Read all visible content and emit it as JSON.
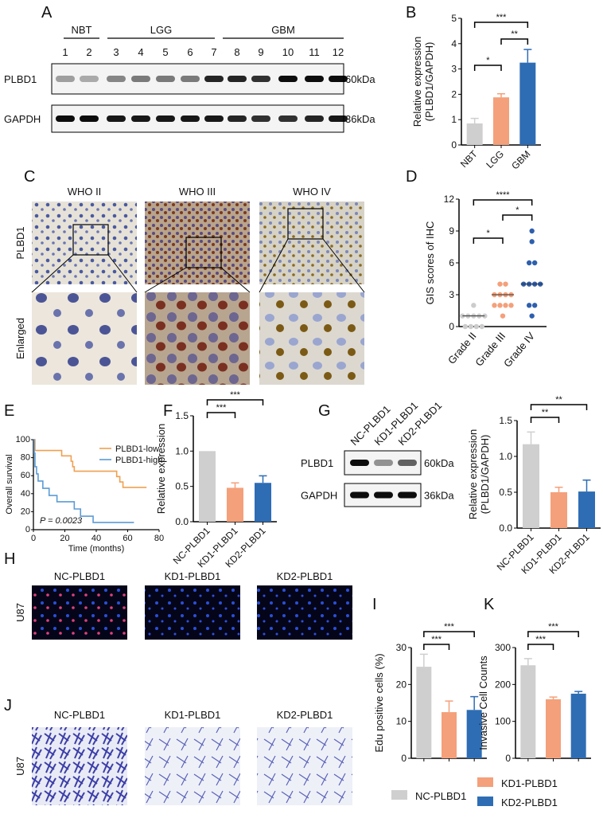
{
  "panels": {
    "A": "A",
    "B": "B",
    "C": "C",
    "D": "D",
    "E": "E",
    "F": "F",
    "G": "G",
    "H": "H",
    "I": "I",
    "J": "J",
    "K": "K"
  },
  "colors": {
    "nc": "#cfcfcf",
    "kd1": "#f4a07a",
    "kd2": "#2e6db4",
    "low": "#f0a050",
    "high": "#5b9bd5",
    "grade2": "#cccccc",
    "grade3": "#f4a07a",
    "grade4": "#2e5fae"
  },
  "blotA": {
    "groups": [
      "NBT",
      "LGG",
      "GBM"
    ],
    "lanes": [
      "1",
      "2",
      "3",
      "4",
      "5",
      "6",
      "7",
      "8",
      "9",
      "10",
      "11",
      "12"
    ],
    "rows": [
      "PLBD1",
      "GAPDH"
    ],
    "sizes": [
      "60kDa",
      "36kDa"
    ],
    "plbd1_intensity": [
      0.35,
      0.3,
      0.45,
      0.5,
      0.5,
      0.5,
      0.85,
      0.85,
      0.8,
      0.95,
      0.95,
      0.95
    ],
    "gapdh_intensity": [
      0.95,
      0.95,
      0.9,
      0.9,
      0.9,
      0.9,
      0.9,
      0.85,
      0.8,
      0.8,
      0.85,
      0.9
    ]
  },
  "ihc": {
    "columns": [
      "WHO II",
      "WHO III",
      "WHO IV"
    ],
    "rows": [
      "PLBD1",
      "Enlarged"
    ]
  },
  "blotG": {
    "lanes": [
      "NC-PLBD1",
      "KD1-PLBD1",
      "KD2-PLBD1"
    ],
    "rows": [
      "PLBD1",
      "GAPDH"
    ],
    "sizes": [
      "60kDa",
      "36kDa"
    ],
    "plbd1_intensity": [
      0.95,
      0.4,
      0.6
    ],
    "gapdh_intensity": [
      0.95,
      0.95,
      0.95
    ]
  },
  "images": {
    "columns": [
      "NC-PLBD1",
      "KD1-PLBD1",
      "KD2-PLBD1"
    ],
    "cell_line": "U87"
  },
  "legend": {
    "nc": "NC-PLBD1",
    "kd1": "KD1-PLBD1",
    "kd2": "KD2-PLBD1"
  },
  "chart_data": [
    {
      "id": "B",
      "type": "bar",
      "categories": [
        "NBT",
        "LGG",
        "GBM"
      ],
      "values": [
        0.85,
        1.88,
        3.25
      ],
      "errors": [
        0.2,
        0.14,
        0.52
      ],
      "ylabel": "Relative expression (PLBD1/GAPDH)",
      "ylabel_lines": [
        "Relative expression",
        "(PLBD1/GAPDH)"
      ],
      "ylim": [
        0,
        5
      ],
      "yticks": [
        "0",
        "1",
        "2",
        "3",
        "4",
        "5"
      ],
      "significance": [
        {
          "pair": [
            0,
            1
          ],
          "label": "*"
        },
        {
          "pair": [
            1,
            2
          ],
          "label": "**"
        },
        {
          "pair": [
            0,
            2
          ],
          "label": "***"
        }
      ]
    },
    {
      "id": "D",
      "type": "scatter",
      "categories": [
        "Grade II",
        "Grade III",
        "Grade IV"
      ],
      "ylabel": "GIS scores of IHC",
      "ylim": [
        0,
        12
      ],
      "yticks": [
        "0",
        "3",
        "6",
        "9",
        "12"
      ],
      "points": [
        [
          0,
          0,
          0,
          0,
          1,
          1,
          1,
          1,
          1,
          2
        ],
        [
          1,
          2,
          2,
          2,
          2,
          3,
          3,
          3,
          3,
          4,
          4
        ],
        [
          1,
          2,
          2,
          4,
          4,
          4,
          4,
          6,
          6,
          8,
          9
        ]
      ],
      "medians": [
        1,
        3,
        4
      ],
      "significance": [
        {
          "pair": [
            0,
            1
          ],
          "label": "*"
        },
        {
          "pair": [
            1,
            2
          ],
          "label": "*"
        },
        {
          "pair": [
            0,
            2
          ],
          "label": "****"
        }
      ]
    },
    {
      "id": "E",
      "type": "line",
      "xlabel": "Time (months)",
      "ylabel": "Overall survival",
      "xlim": [
        0,
        80
      ],
      "ylim": [
        0,
        100
      ],
      "xticks": [
        "0",
        "20",
        "40",
        "60",
        "80"
      ],
      "yticks": [
        "0",
        "20",
        "40",
        "60",
        "80",
        "100"
      ],
      "annotation": "P = 0.0023",
      "series": [
        {
          "name": "PLBD1-low",
          "points": [
            [
              0,
              100
            ],
            [
              1,
              88
            ],
            [
              18,
              82
            ],
            [
              24,
              76
            ],
            [
              25,
              70
            ],
            [
              26,
              65
            ],
            [
              53,
              59
            ],
            [
              55,
              53
            ],
            [
              57,
              47
            ],
            [
              72,
              47
            ]
          ]
        },
        {
          "name": "PLBD1-high",
          "points": [
            [
              0,
              100
            ],
            [
              0.5,
              85
            ],
            [
              1,
              70
            ],
            [
              2,
              62
            ],
            [
              3,
              54
            ],
            [
              6,
              46
            ],
            [
              10,
              38
            ],
            [
              15,
              31
            ],
            [
              26,
              23
            ],
            [
              30,
              15
            ],
            [
              38,
              8
            ],
            [
              64,
              8
            ]
          ]
        }
      ]
    },
    {
      "id": "F",
      "type": "bar",
      "categories": [
        "NC-PLBD1",
        "KD1-PLBD1",
        "KD2-PLBD1"
      ],
      "values": [
        1.0,
        0.48,
        0.55
      ],
      "errors": [
        0,
        0.07,
        0.1
      ],
      "ylabel": "Relative expression",
      "ylabel_lines": [
        "Relative expression"
      ],
      "ylim": [
        0,
        1.5
      ],
      "yticks": [
        "0.0",
        "0.5",
        "1.0",
        "1.5"
      ],
      "significance": [
        {
          "pair": [
            0,
            1
          ],
          "label": "***"
        },
        {
          "pair": [
            0,
            2
          ],
          "label": "***"
        }
      ]
    },
    {
      "id": "G",
      "type": "bar",
      "categories": [
        "NC-PLBD1",
        "KD1-PLBD1",
        "KD2-PLBD1"
      ],
      "values": [
        1.17,
        0.5,
        0.51
      ],
      "errors": [
        0.17,
        0.07,
        0.16
      ],
      "ylabel": "Relative expression (PLBD1/GAPDH)",
      "ylabel_lines": [
        "Relative expression",
        "(PLBD1/GAPDH)"
      ],
      "ylim": [
        0,
        1.5
      ],
      "yticks": [
        "0.0",
        "0.5",
        "1.0",
        "1.5"
      ],
      "significance": [
        {
          "pair": [
            0,
            1
          ],
          "label": "**"
        },
        {
          "pair": [
            0,
            2
          ],
          "label": "**"
        }
      ]
    },
    {
      "id": "I",
      "type": "bar",
      "categories": [
        "NC-PLBD1",
        "KD1-PLBD1",
        "KD2-PLBD1"
      ],
      "values": [
        24.8,
        12.5,
        13.1
      ],
      "errors": [
        3.4,
        3.0,
        3.6
      ],
      "ylabel": "Edu positive cells (%)",
      "ylabel_lines": [
        "Edu positive cells (%)"
      ],
      "ylim": [
        0,
        30
      ],
      "yticks": [
        "0",
        "10",
        "20",
        "30"
      ],
      "significance": [
        {
          "pair": [
            0,
            1
          ],
          "label": "***"
        },
        {
          "pair": [
            0,
            2
          ],
          "label": "***"
        }
      ]
    },
    {
      "id": "K",
      "type": "bar",
      "categories": [
        "NC-PLBD1",
        "KD1-PLBD1",
        "KD2-PLBD1"
      ],
      "values": [
        252,
        160,
        175
      ],
      "errors": [
        18,
        6,
        6
      ],
      "ylabel": "Invasive Cell Counts",
      "ylabel_lines": [
        "Invasive Cell Counts"
      ],
      "ylim": [
        0,
        300
      ],
      "yticks": [
        "0",
        "100",
        "200",
        "300"
      ],
      "significance": [
        {
          "pair": [
            0,
            1
          ],
          "label": "***"
        },
        {
          "pair": [
            0,
            2
          ],
          "label": "***"
        }
      ]
    }
  ]
}
